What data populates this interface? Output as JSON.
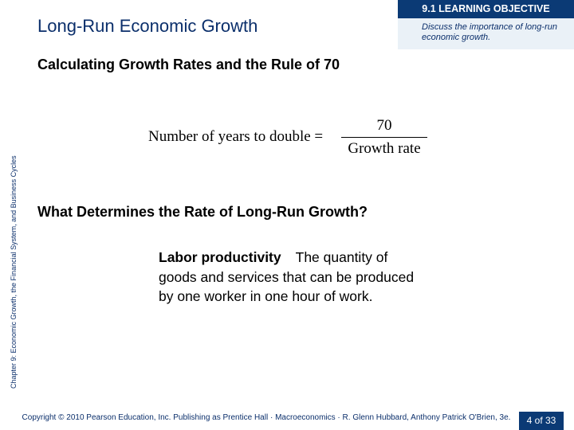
{
  "slide": {
    "title": "Long-Run Economic Growth",
    "objective_heading": "9.1 LEARNING OBJECTIVE",
    "objective_text": "Discuss the importance of long-run economic growth.",
    "vertical_label": "Chapter 9: Economic Growth, the Financial System, and Business Cycles",
    "heading1": "Calculating Growth Rates and the Rule of 70",
    "formula": {
      "lhs": "Number of  years to double =",
      "numerator": "70",
      "denominator": "Growth rate"
    },
    "heading2": "What Determines the Rate of Long-Run Growth?",
    "definition": {
      "term": "Labor productivity",
      "text": "The quantity of goods and services that can be produced by one worker in one hour of work."
    },
    "footer": "Copyright © 2010 Pearson Education, Inc. Publishing as Prentice Hall · Macroeconomics · R. Glenn Hubbard, Anthony Patrick O'Brien, 3e.",
    "page": "4 of 33"
  },
  "colors": {
    "brand_navy": "#0b3a75",
    "objective_bg": "#eaf1f7",
    "text_blue": "#0b2f6b"
  }
}
